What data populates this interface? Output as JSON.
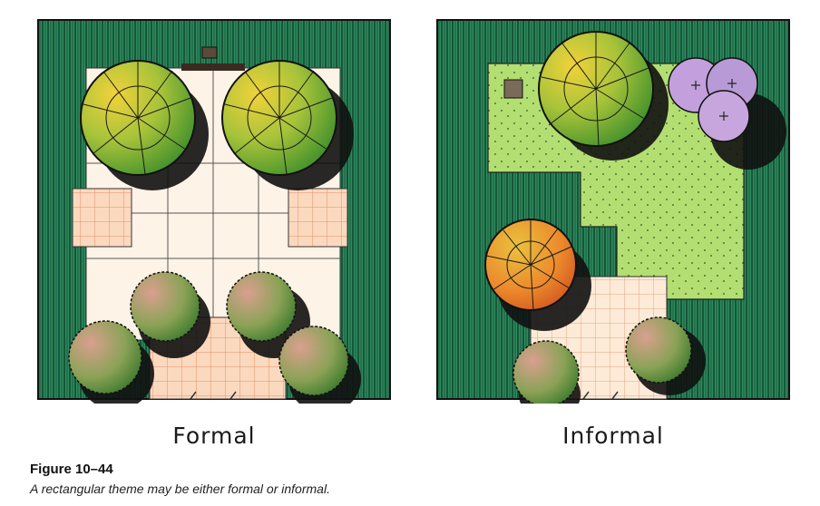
{
  "figure": {
    "number": "Figure 10–44",
    "caption": "A rectangular theme may be either formal or informal."
  },
  "plans": {
    "formal": {
      "label": "Formal"
    },
    "informal": {
      "label": "Informal"
    }
  },
  "colors": {
    "grass": "#1f6b4a",
    "grass_dark": "#0f4a30",
    "lawn_light": "#a6d867",
    "paving": "#fbe9d6",
    "paving_grid": "#f2b48a",
    "tree_yellow": "#e7c436",
    "tree_green": "#5fa82e",
    "tree_orange": "#e87e2a",
    "shrub_pink": "#c98a80",
    "shrub_purple": "#b99ad8",
    "shadow": "#111111"
  }
}
